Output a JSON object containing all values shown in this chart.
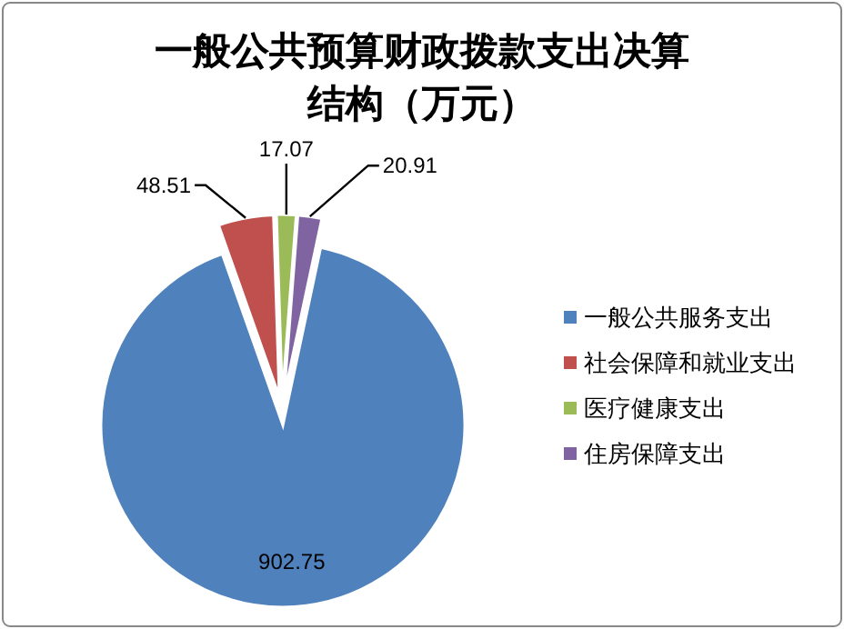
{
  "chart_data": {
    "type": "pie",
    "title": "一般公共预算财政拨款支出决算结构（万元）",
    "categories": [
      "一般公共服务支出",
      "社会保障和就业支出",
      "医疗健康支出",
      "住房保障支出"
    ],
    "values": [
      902.75,
      48.51,
      17.07,
      20.91
    ],
    "colors": [
      "#4f81bd",
      "#c0504d",
      "#9bbb59",
      "#8064a2"
    ],
    "data_labels": true,
    "legend": "right"
  }
}
